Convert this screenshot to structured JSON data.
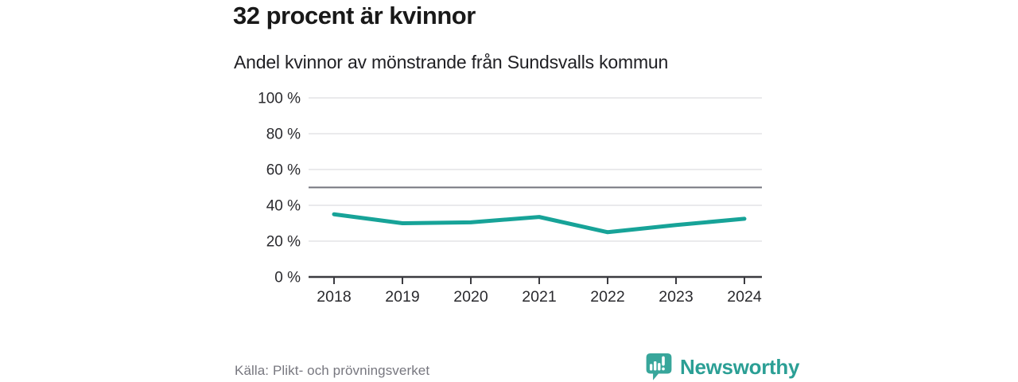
{
  "chart_data": {
    "type": "line",
    "title": "32 procent är kvinnor",
    "subtitle": "Andel kvinnor av mönstrande från Sundsvalls kommun",
    "x": [
      "2018",
      "2019",
      "2020",
      "2021",
      "2022",
      "2023",
      "2024"
    ],
    "series": [
      {
        "name": "Andel kvinnor",
        "values": [
          35,
          30,
          30.5,
          33.5,
          25,
          29,
          32.5
        ]
      }
    ],
    "xlabel": "",
    "ylabel": "",
    "ylim": [
      0,
      100
    ],
    "yticks": [
      0,
      20,
      40,
      60,
      80,
      100
    ],
    "ytick_labels": [
      "0 %",
      "20 %",
      "40 %",
      "60 %",
      "80 %",
      "100 %"
    ],
    "reference_line": {
      "value": 50
    },
    "grid": true,
    "legend": false
  },
  "footer": {
    "source": "Källa: Plikt- och prövningsverket",
    "brand": "Newsworthy"
  },
  "icons": {
    "logo": "bar-chart-speech-bubble-icon"
  },
  "colors": {
    "line": "#17a398",
    "logo_teal": "#38a69b",
    "brand_text": "#2b9f95",
    "grid": "#e3e3e5",
    "reference": "#73747c",
    "axis": "#3b3b40",
    "title_text": "#191919",
    "axis_text": "#2a2a2e",
    "source_text": "#77777f"
  }
}
